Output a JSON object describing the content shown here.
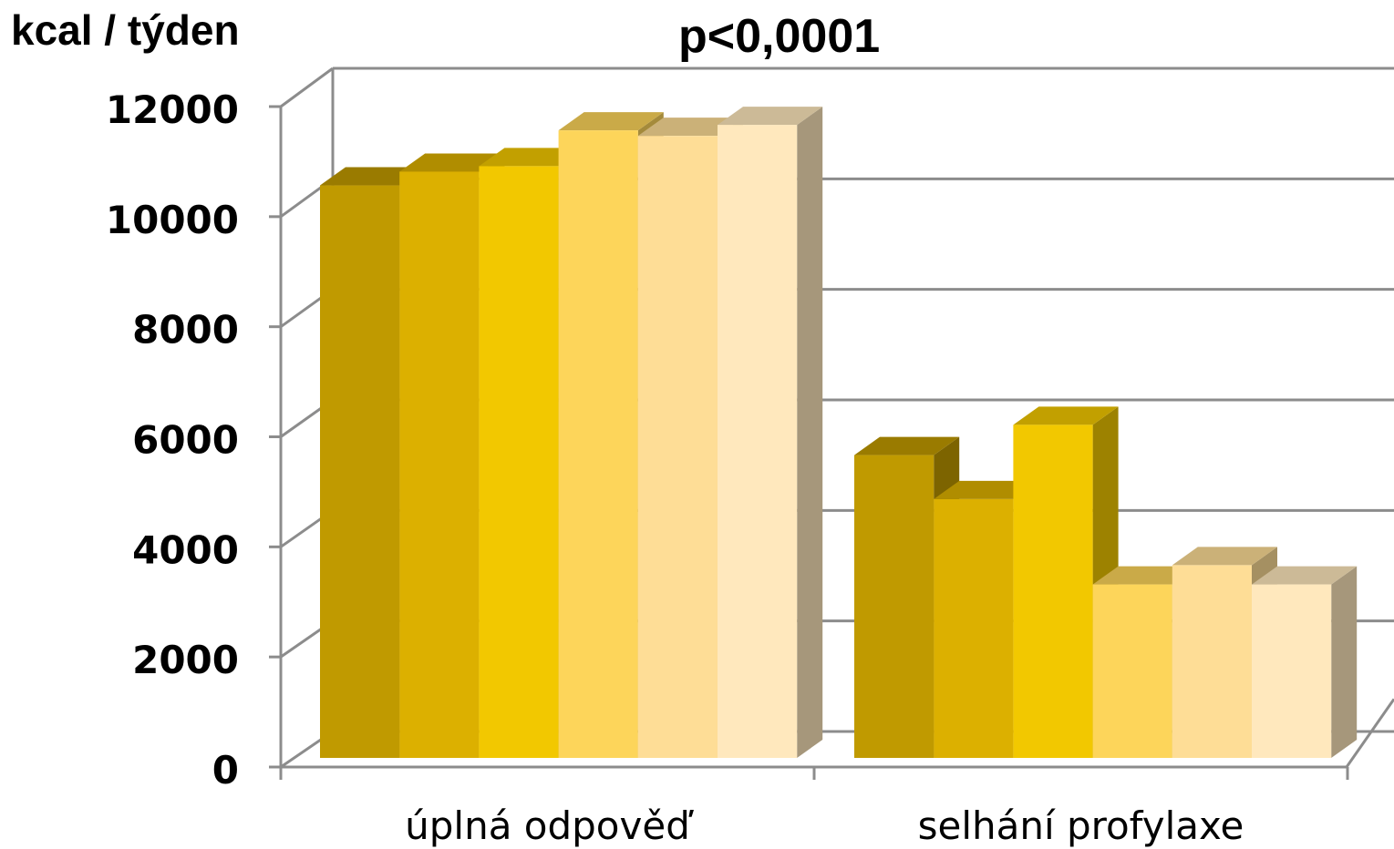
{
  "chart_data": {
    "type": "bar",
    "title": "p<0,0001",
    "ylabel": "kcal / týden",
    "xlabel": "",
    "categories": [
      "úplná odpověď",
      "selhání profylaxe"
    ],
    "ylim": [
      0,
      12000
    ],
    "yticks": [
      "0",
      "2000",
      "4000",
      "6000",
      "8000",
      "10000",
      "12000"
    ],
    "grid": true,
    "legend": "none",
    "series": [
      {
        "values": [
          10700,
          5800
        ],
        "color": "#C09A00"
      },
      {
        "values": [
          10950,
          5000
        ],
        "color": "#DCB000"
      },
      {
        "values": [
          11050,
          6350
        ],
        "color": "#F2C800"
      },
      {
        "values": [
          11700,
          3450
        ],
        "color": "#FDD55A"
      },
      {
        "values": [
          11600,
          3800
        ],
        "color": "#FEDD96"
      },
      {
        "values": [
          11800,
          3450
        ],
        "color": "#FFE8BD"
      }
    ]
  }
}
